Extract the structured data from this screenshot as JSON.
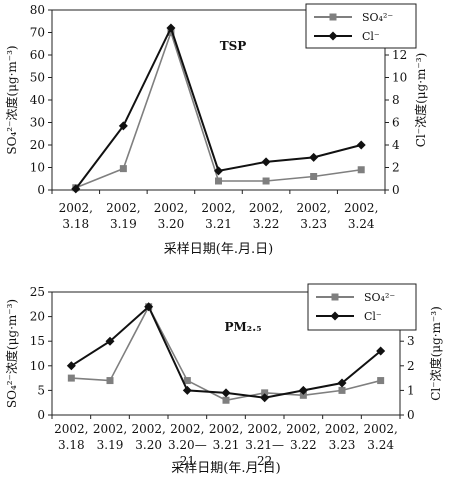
{
  "charts": [
    {
      "label": "TSP",
      "type": "line",
      "xlabel": "采样日期(年.月.日)",
      "ylabel_left": "SO₄²⁻浓度(μg·m⁻³)",
      "ylabel_right": "Cl⁻浓度(μg·m⁻³)",
      "ylim_left": [
        0,
        80
      ],
      "yticks_left": [
        0,
        10,
        20,
        30,
        40,
        50,
        60,
        70,
        80
      ],
      "ylim_right": [
        0,
        16
      ],
      "yticks_right": [
        0,
        2,
        4,
        6,
        8,
        10,
        12,
        14,
        16
      ],
      "categories": [
        [
          "2002,",
          "3.18"
        ],
        [
          "2002,",
          "3.19"
        ],
        [
          "2002,",
          "3.20"
        ],
        [
          "2002,",
          "3.21"
        ],
        [
          "2002,",
          "3.22"
        ],
        [
          "2002,",
          "3.23"
        ],
        [
          "2002,",
          "3.24"
        ]
      ],
      "legend_placement": "top-right",
      "series": [
        {
          "name": "SO₄²⁻",
          "axis": "left",
          "marker": "square",
          "color": "#7f7f7f",
          "values": [
            1,
            9.5,
            70,
            4,
            4,
            6,
            9
          ]
        },
        {
          "name": "Cl⁻",
          "axis": "right",
          "marker": "diamond",
          "color": "#111111",
          "values": [
            0.1,
            5.7,
            14.4,
            1.7,
            2.5,
            2.9,
            4.0
          ]
        }
      ]
    },
    {
      "label": "PM₂.₅",
      "type": "line",
      "xlabel": "采样日期(年.月.日)",
      "ylabel_left": "SO₄²⁻浓度(μg·m⁻³)",
      "ylabel_right": "Cl⁻浓度(μg·m⁻³)",
      "ylim_left": [
        0,
        25
      ],
      "yticks_left": [
        0,
        5,
        10,
        15,
        20,
        25
      ],
      "ylim_right": [
        0,
        5
      ],
      "yticks_right": [
        0,
        1,
        2,
        3,
        4,
        5
      ],
      "categories": [
        [
          "2002,",
          "3.18"
        ],
        [
          "2002,",
          "3.19"
        ],
        [
          "2002,",
          "3.20"
        ],
        [
          "2002,",
          "3.20—",
          "21"
        ],
        [
          "2002,",
          "3.21"
        ],
        [
          "2002,",
          "3.21—",
          "22"
        ],
        [
          "2002,",
          "3.22"
        ],
        [
          "2002,",
          "3.23"
        ],
        [
          "2002,",
          "3.24"
        ]
      ],
      "legend_placement": "top-right",
      "series": [
        {
          "name": "SO₄²⁻",
          "axis": "left",
          "marker": "square",
          "color": "#7f7f7f",
          "values": [
            7.5,
            7,
            22,
            7,
            3,
            4.5,
            4,
            5,
            7
          ]
        },
        {
          "name": "Cl⁻",
          "axis": "right",
          "marker": "diamond",
          "color": "#111111",
          "values": [
            2.0,
            3.0,
            4.4,
            1.0,
            0.9,
            0.7,
            1.0,
            1.3,
            2.6
          ]
        }
      ]
    }
  ]
}
